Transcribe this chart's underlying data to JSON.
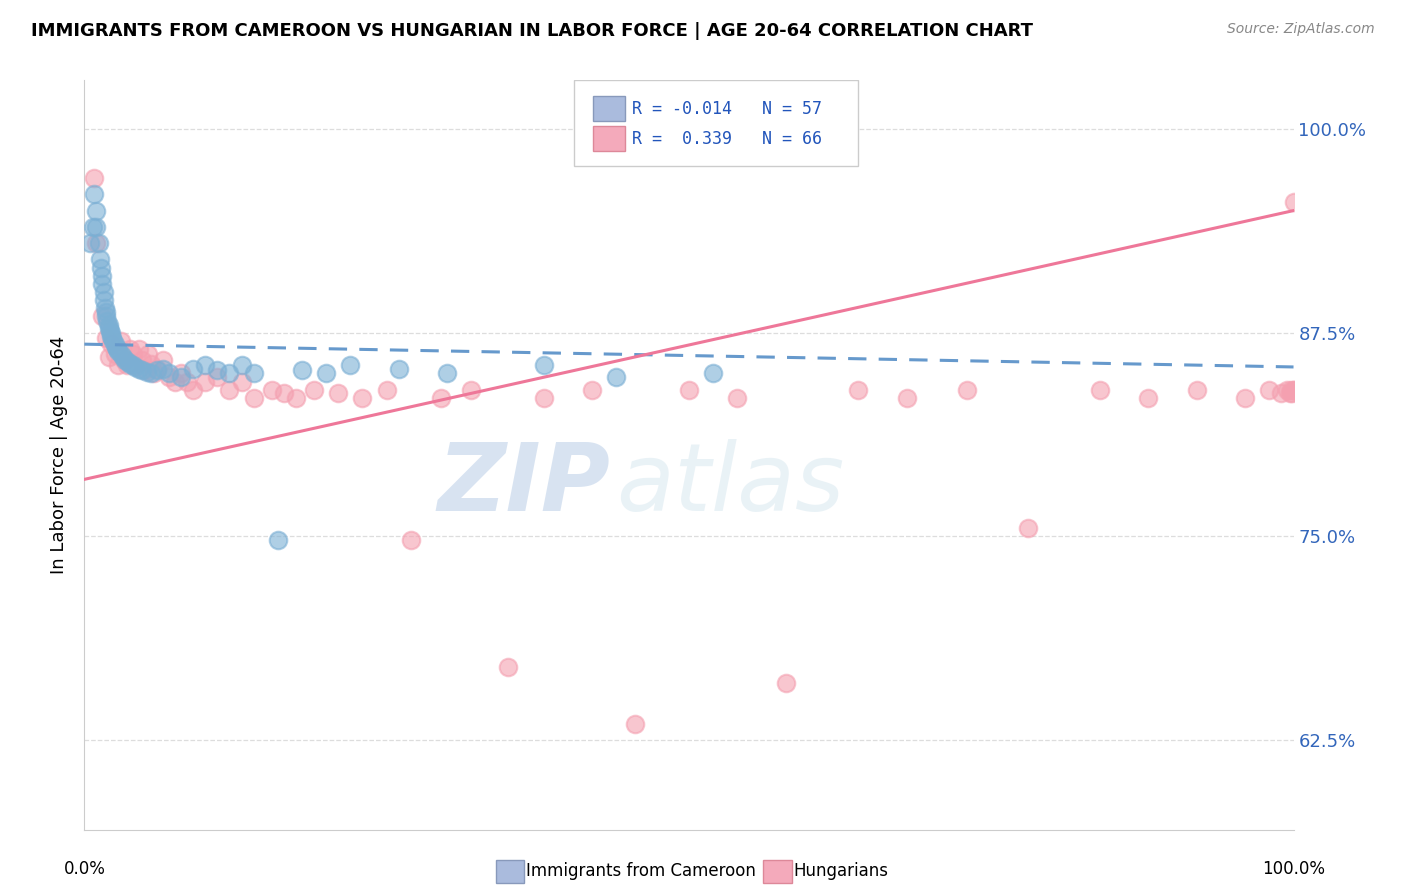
{
  "title": "IMMIGRANTS FROM CAMEROON VS HUNGARIAN IN LABOR FORCE | AGE 20-64 CORRELATION CHART",
  "source": "Source: ZipAtlas.com",
  "ylabel": "In Labor Force | Age 20-64",
  "yticks": [
    0.625,
    0.75,
    0.875,
    1.0
  ],
  "ytick_labels": [
    "62.5%",
    "75.0%",
    "87.5%",
    "100.0%"
  ],
  "xlim": [
    0.0,
    1.0
  ],
  "ylim": [
    0.57,
    1.03
  ],
  "color_blue": "#7BAFD4",
  "color_pink": "#F4A0B0",
  "color_blue_line": "#6699CC",
  "color_pink_line": "#EE7799",
  "watermark_zip": "ZIP",
  "watermark_atlas": "atlas",
  "cameroon_x": [
    0.005,
    0.007,
    0.008,
    0.01,
    0.01,
    0.012,
    0.013,
    0.014,
    0.015,
    0.015,
    0.016,
    0.016,
    0.017,
    0.018,
    0.018,
    0.019,
    0.02,
    0.02,
    0.021,
    0.022,
    0.022,
    0.023,
    0.024,
    0.025,
    0.026,
    0.027,
    0.028,
    0.03,
    0.032,
    0.034,
    0.036,
    0.038,
    0.04,
    0.042,
    0.045,
    0.048,
    0.052,
    0.055,
    0.06,
    0.065,
    0.07,
    0.08,
    0.09,
    0.1,
    0.11,
    0.12,
    0.13,
    0.14,
    0.16,
    0.18,
    0.2,
    0.22,
    0.26,
    0.3,
    0.38,
    0.44,
    0.52
  ],
  "cameroon_y": [
    0.93,
    0.94,
    0.96,
    0.95,
    0.94,
    0.93,
    0.92,
    0.915,
    0.91,
    0.905,
    0.9,
    0.895,
    0.89,
    0.888,
    0.885,
    0.882,
    0.88,
    0.878,
    0.876,
    0.875,
    0.873,
    0.872,
    0.87,
    0.868,
    0.866,
    0.865,
    0.864,
    0.862,
    0.86,
    0.858,
    0.857,
    0.856,
    0.855,
    0.854,
    0.853,
    0.852,
    0.851,
    0.85,
    0.852,
    0.853,
    0.85,
    0.848,
    0.853,
    0.855,
    0.852,
    0.85,
    0.855,
    0.85,
    0.748,
    0.852,
    0.85,
    0.855,
    0.853,
    0.85,
    0.855,
    0.848,
    0.85
  ],
  "hungarian_x": [
    0.008,
    0.01,
    0.015,
    0.018,
    0.02,
    0.022,
    0.025,
    0.028,
    0.03,
    0.033,
    0.035,
    0.038,
    0.04,
    0.042,
    0.045,
    0.048,
    0.05,
    0.053,
    0.055,
    0.058,
    0.06,
    0.065,
    0.07,
    0.075,
    0.08,
    0.085,
    0.09,
    0.1,
    0.11,
    0.12,
    0.13,
    0.14,
    0.155,
    0.165,
    0.175,
    0.19,
    0.21,
    0.23,
    0.25,
    0.27,
    0.295,
    0.32,
    0.35,
    0.38,
    0.42,
    0.455,
    0.5,
    0.54,
    0.58,
    0.64,
    0.68,
    0.73,
    0.78,
    0.84,
    0.88,
    0.92,
    0.96,
    0.98,
    0.99,
    0.995,
    0.997,
    0.998,
    0.999,
    1.0,
    1.0,
    1.0
  ],
  "hungarian_y": [
    0.97,
    0.93,
    0.885,
    0.872,
    0.86,
    0.868,
    0.862,
    0.855,
    0.87,
    0.858,
    0.855,
    0.865,
    0.862,
    0.855,
    0.865,
    0.858,
    0.852,
    0.862,
    0.856,
    0.85,
    0.853,
    0.858,
    0.848,
    0.845,
    0.85,
    0.845,
    0.84,
    0.845,
    0.848,
    0.84,
    0.845,
    0.835,
    0.84,
    0.838,
    0.835,
    0.84,
    0.838,
    0.835,
    0.84,
    0.748,
    0.835,
    0.84,
    0.67,
    0.835,
    0.84,
    0.635,
    0.84,
    0.835,
    0.66,
    0.84,
    0.835,
    0.84,
    0.755,
    0.84,
    0.835,
    0.84,
    0.835,
    0.84,
    0.838,
    0.84,
    0.838,
    0.84,
    0.838,
    0.84,
    0.84,
    0.955
  ],
  "cam_trend_x": [
    0.0,
    1.0
  ],
  "cam_trend_y": [
    0.868,
    0.854
  ],
  "hun_trend_x": [
    0.0,
    1.0
  ],
  "hun_trend_y": [
    0.785,
    0.95
  ]
}
